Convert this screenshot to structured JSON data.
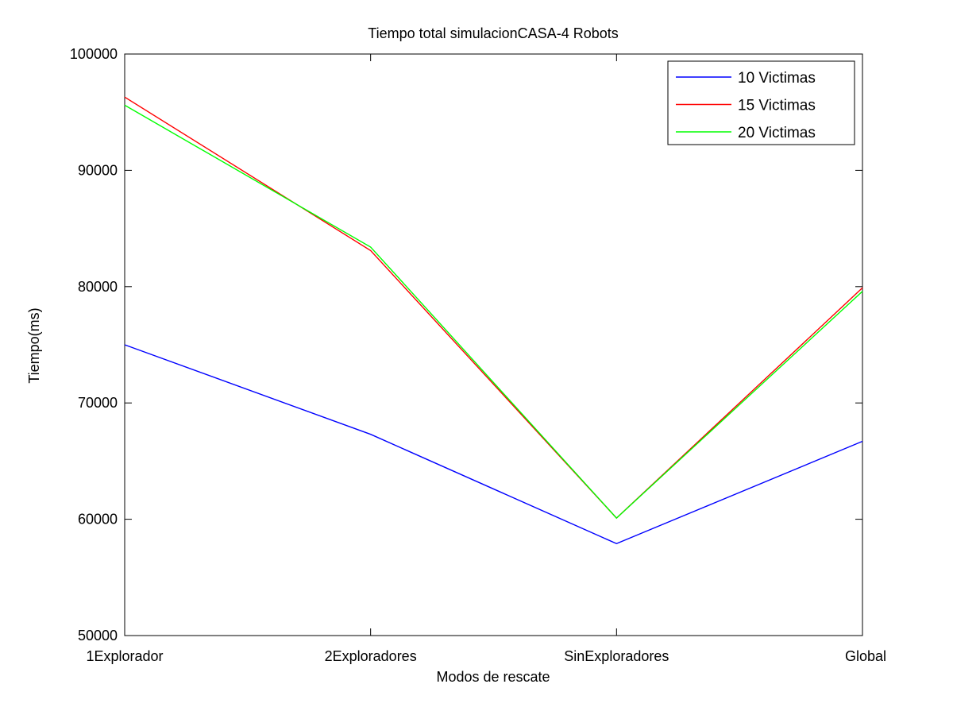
{
  "chart_data": {
    "type": "line",
    "title": "Tiempo total simulacionCASA-4 Robots",
    "xlabel": "Modos de rescate",
    "ylabel": "Tiempo(ms)",
    "categories": [
      "1Explorador",
      "2Exploradores",
      "SinExploradores",
      "Global"
    ],
    "ylim": [
      50000,
      100000
    ],
    "yticks": [
      50000,
      60000,
      70000,
      80000,
      90000,
      100000
    ],
    "grid": false,
    "legend_position": "top-right",
    "series": [
      {
        "name": "10 Victimas",
        "color": "#0000ff",
        "values": [
          75000,
          67300,
          57900,
          66700
        ]
      },
      {
        "name": "15 Victimas",
        "color": "#ff0000",
        "values": [
          96300,
          83100,
          60100,
          79900
        ]
      },
      {
        "name": "20 Victimas",
        "color": "#00ff00",
        "values": [
          95600,
          83400,
          60100,
          79600
        ]
      }
    ]
  }
}
